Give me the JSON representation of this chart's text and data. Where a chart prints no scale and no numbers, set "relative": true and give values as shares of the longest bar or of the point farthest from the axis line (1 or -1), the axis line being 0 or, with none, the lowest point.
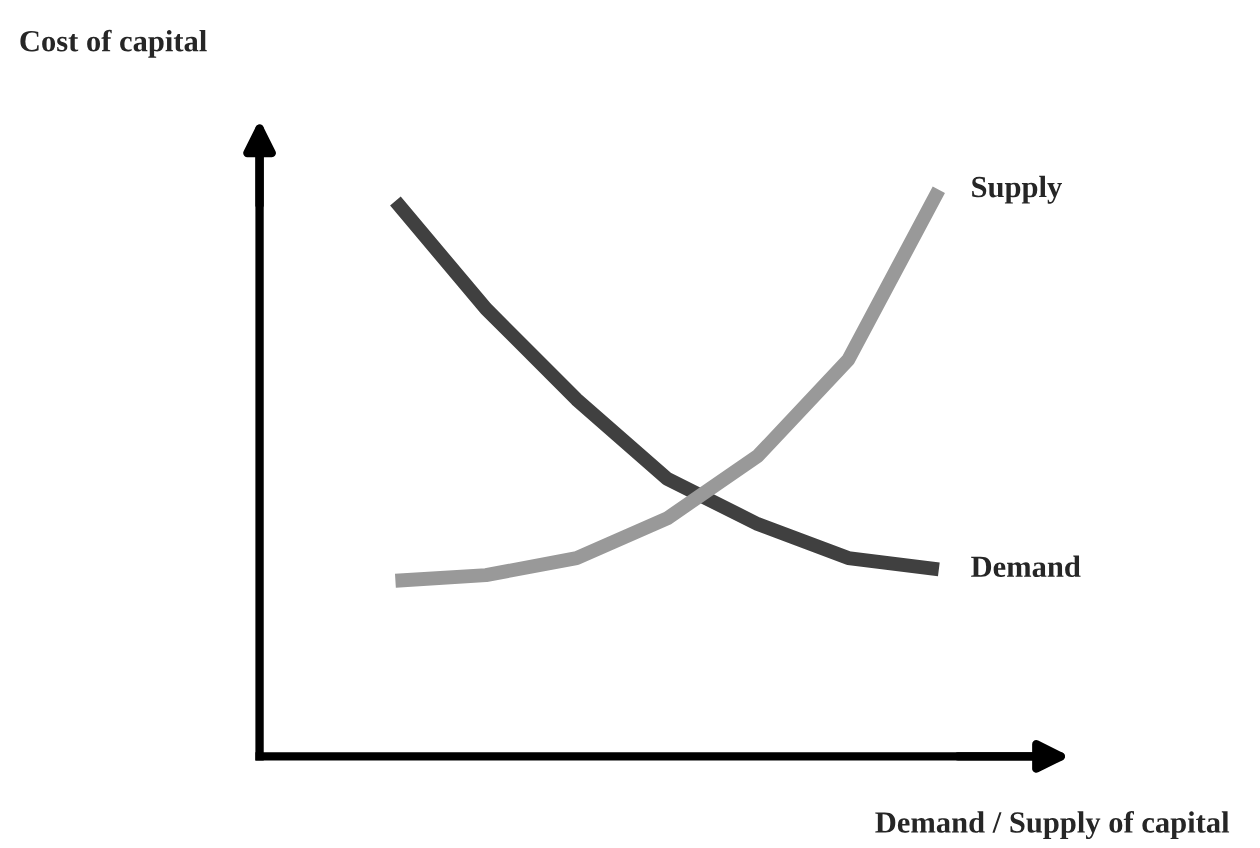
{
  "chart_data": {
    "type": "line",
    "relative": true,
    "xlabel": "Demand / Supply of capital",
    "annotations": [
      "Cost of capital"
    ],
    "categories": [
      null,
      null,
      null,
      null,
      null,
      null,
      null
    ],
    "series": [
      {
        "name": "Demand",
        "color": "#404040",
        "values": [
          0.98,
          0.79,
          0.63,
          0.49,
          0.41,
          0.35,
          0.33
        ]
      },
      {
        "name": "Supply",
        "color": "#999999",
        "values": [
          0.31,
          0.32,
          0.35,
          0.42,
          0.53,
          0.7,
          1.0
        ]
      }
    ],
    "legend": false,
    "tick_labels": false,
    "marker": "none",
    "line_style": "solid"
  }
}
